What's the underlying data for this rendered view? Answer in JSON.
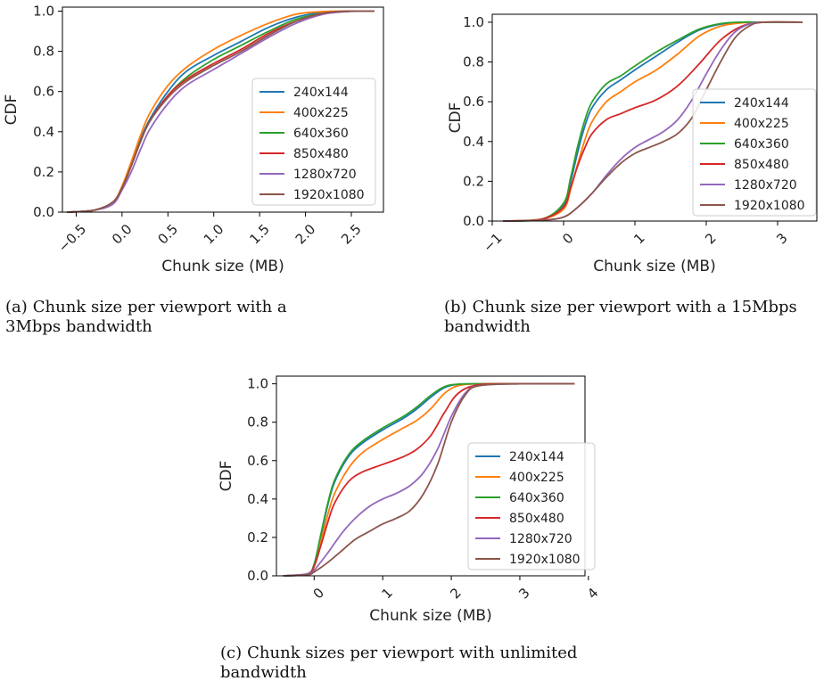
{
  "legend_labels": [
    "240x144",
    "400x225",
    "640x360",
    "850x480",
    "1280x720",
    "1920x1080"
  ],
  "series_colors": [
    "#1f77b4",
    "#ff7f0e",
    "#2ca02c",
    "#d62728",
    "#9467bd",
    "#8c564b"
  ],
  "captions": [
    {
      "tag": "(a)",
      "text": "Chunk size per viewport with a 3Mbps bandwidth"
    },
    {
      "tag": "(b)",
      "text": "Chunk size per viewport with a 15Mbps bandwidth"
    },
    {
      "tag": "(c)",
      "text": "Chunk sizes per viewport with unlimited bandwidth"
    }
  ],
  "chart_data": [
    {
      "type": "line",
      "xlabel": "Chunk size (MB)",
      "ylabel": "CDF",
      "xlim": [
        -0.65,
        2.85
      ],
      "ylim": [
        0,
        1.02
      ],
      "xticks": [
        -0.5,
        0.0,
        0.5,
        1.0,
        1.5,
        2.0,
        2.5
      ],
      "xtick_labels": [
        "−0.5",
        "0.0",
        "0.5",
        "1.0",
        "1.5",
        "2.0",
        "2.5"
      ],
      "yticks": [
        0.0,
        0.2,
        0.4,
        0.6,
        0.8,
        1.0
      ],
      "ytick_labels": [
        "0.0",
        "0.2",
        "0.4",
        "0.6",
        "0.8",
        "1.0"
      ],
      "grid": false,
      "legend_position": "center-right",
      "series": [
        {
          "name": "240x144",
          "x": [
            -0.6,
            -0.3,
            -0.1,
            0.0,
            0.1,
            0.2,
            0.3,
            0.5,
            0.7,
            1.0,
            1.3,
            1.6,
            1.9,
            2.2,
            2.5,
            2.75
          ],
          "y": [
            0,
            0.01,
            0.05,
            0.12,
            0.24,
            0.36,
            0.46,
            0.6,
            0.7,
            0.78,
            0.85,
            0.92,
            0.97,
            0.995,
            1.0,
            1.0
          ]
        },
        {
          "name": "400x225",
          "x": [
            -0.6,
            -0.3,
            -0.1,
            0.0,
            0.1,
            0.2,
            0.3,
            0.5,
            0.7,
            1.0,
            1.3,
            1.6,
            1.9,
            2.2,
            2.5,
            2.75
          ],
          "y": [
            0,
            0.01,
            0.05,
            0.13,
            0.25,
            0.38,
            0.49,
            0.63,
            0.72,
            0.81,
            0.88,
            0.94,
            0.985,
            0.998,
            1.0,
            1.0
          ]
        },
        {
          "name": "640x360",
          "x": [
            -0.6,
            -0.3,
            -0.1,
            0.0,
            0.1,
            0.2,
            0.3,
            0.5,
            0.7,
            1.0,
            1.3,
            1.6,
            1.9,
            2.2,
            2.5,
            2.75
          ],
          "y": [
            0,
            0.01,
            0.05,
            0.12,
            0.23,
            0.35,
            0.45,
            0.58,
            0.67,
            0.76,
            0.83,
            0.9,
            0.96,
            0.99,
            1.0,
            1.0
          ]
        },
        {
          "name": "850x480",
          "x": [
            -0.6,
            -0.3,
            -0.1,
            0.0,
            0.1,
            0.2,
            0.3,
            0.5,
            0.7,
            1.0,
            1.3,
            1.6,
            1.9,
            2.2,
            2.5,
            2.75
          ],
          "y": [
            0,
            0.01,
            0.05,
            0.12,
            0.23,
            0.35,
            0.45,
            0.58,
            0.66,
            0.74,
            0.81,
            0.89,
            0.95,
            0.99,
            1.0,
            1.0
          ]
        },
        {
          "name": "1280x720",
          "x": [
            -0.6,
            -0.3,
            -0.1,
            0.0,
            0.1,
            0.2,
            0.3,
            0.5,
            0.7,
            1.0,
            1.3,
            1.6,
            1.9,
            2.2,
            2.5,
            2.75
          ],
          "y": [
            0,
            0.01,
            0.04,
            0.11,
            0.2,
            0.31,
            0.41,
            0.54,
            0.63,
            0.71,
            0.79,
            0.87,
            0.94,
            0.985,
            0.999,
            1.0
          ]
        },
        {
          "name": "1920x1080",
          "x": [
            -0.6,
            -0.3,
            -0.1,
            0.0,
            0.1,
            0.2,
            0.3,
            0.5,
            0.7,
            1.0,
            1.3,
            1.6,
            1.9,
            2.2,
            2.5,
            2.75
          ],
          "y": [
            0,
            0.01,
            0.05,
            0.12,
            0.23,
            0.35,
            0.45,
            0.57,
            0.65,
            0.73,
            0.8,
            0.88,
            0.95,
            0.99,
            1.0,
            1.0
          ]
        }
      ]
    },
    {
      "type": "line",
      "xlabel": "Chunk size (MB)",
      "ylabel": "CDF",
      "xlim": [
        -1.0,
        3.55
      ],
      "ylim": [
        0,
        1.04
      ],
      "xticks": [
        -1,
        0,
        1,
        2,
        3
      ],
      "xtick_labels": [
        "−1",
        "0",
        "1",
        "2",
        "3"
      ],
      "yticks": [
        0.0,
        0.2,
        0.4,
        0.6,
        0.8,
        1.0
      ],
      "ytick_labels": [
        "0.0",
        "0.2",
        "0.4",
        "0.6",
        "0.8",
        "1.0"
      ],
      "grid": false,
      "legend_position": "center-right",
      "series": [
        {
          "name": "240x144",
          "x": [
            -0.85,
            -0.3,
            0.0,
            0.1,
            0.2,
            0.3,
            0.4,
            0.6,
            0.8,
            1.0,
            1.3,
            1.6,
            1.9,
            2.2,
            2.5,
            2.8,
            3.35
          ],
          "y": [
            0,
            0.01,
            0.08,
            0.2,
            0.35,
            0.48,
            0.57,
            0.66,
            0.71,
            0.76,
            0.83,
            0.9,
            0.96,
            0.99,
            1.0,
            1.0,
            1.0
          ]
        },
        {
          "name": "400x225",
          "x": [
            -0.85,
            -0.3,
            0.0,
            0.1,
            0.2,
            0.3,
            0.4,
            0.6,
            0.8,
            1.0,
            1.3,
            1.6,
            1.9,
            2.2,
            2.5,
            2.8,
            3.35
          ],
          "y": [
            0,
            0.01,
            0.06,
            0.16,
            0.29,
            0.41,
            0.5,
            0.6,
            0.65,
            0.7,
            0.76,
            0.84,
            0.93,
            0.98,
            0.997,
            1.0,
            1.0
          ]
        },
        {
          "name": "640x360",
          "x": [
            -0.85,
            -0.3,
            0.0,
            0.1,
            0.2,
            0.3,
            0.4,
            0.6,
            0.8,
            1.0,
            1.3,
            1.6,
            1.9,
            2.2,
            2.5,
            2.8,
            3.35
          ],
          "y": [
            0,
            0.01,
            0.09,
            0.22,
            0.38,
            0.51,
            0.6,
            0.69,
            0.73,
            0.78,
            0.85,
            0.91,
            0.965,
            0.993,
            1.0,
            1.0,
            1.0
          ]
        },
        {
          "name": "850x480",
          "x": [
            -0.85,
            -0.3,
            0.0,
            0.1,
            0.2,
            0.3,
            0.4,
            0.6,
            0.8,
            1.0,
            1.3,
            1.6,
            1.9,
            2.2,
            2.5,
            2.8,
            3.35
          ],
          "y": [
            0,
            0.01,
            0.07,
            0.17,
            0.28,
            0.37,
            0.44,
            0.51,
            0.54,
            0.57,
            0.61,
            0.68,
            0.79,
            0.91,
            0.98,
            1.0,
            1.0
          ]
        },
        {
          "name": "1280x720",
          "x": [
            -0.85,
            -0.3,
            0.0,
            0.2,
            0.4,
            0.6,
            0.8,
            1.0,
            1.2,
            1.4,
            1.6,
            1.8,
            2.0,
            2.2,
            2.4,
            2.6,
            2.8,
            3.35
          ],
          "y": [
            0,
            0.005,
            0.02,
            0.07,
            0.14,
            0.23,
            0.31,
            0.37,
            0.41,
            0.45,
            0.51,
            0.61,
            0.74,
            0.86,
            0.95,
            0.99,
            1.0,
            1.0
          ]
        },
        {
          "name": "1920x1080",
          "x": [
            -0.85,
            -0.3,
            0.0,
            0.2,
            0.4,
            0.6,
            0.8,
            1.0,
            1.2,
            1.4,
            1.6,
            1.8,
            2.0,
            2.2,
            2.4,
            2.6,
            2.8,
            3.35
          ],
          "y": [
            0,
            0.005,
            0.02,
            0.07,
            0.14,
            0.22,
            0.29,
            0.34,
            0.37,
            0.4,
            0.44,
            0.52,
            0.66,
            0.8,
            0.92,
            0.98,
            1.0,
            1.0
          ]
        }
      ]
    },
    {
      "type": "line",
      "xlabel": "Chunk size (MB)",
      "ylabel": "CDF",
      "xlim": [
        -0.55,
        3.95
      ],
      "ylim": [
        0,
        1.04
      ],
      "xticks": [
        0,
        1,
        2,
        3,
        4
      ],
      "xtick_labels": [
        "0",
        "1",
        "2",
        "3",
        "4"
      ],
      "yticks": [
        0.0,
        0.2,
        0.4,
        0.6,
        0.8,
        1.0
      ],
      "ytick_labels": [
        "0.0",
        "0.2",
        "0.4",
        "0.6",
        "0.8",
        "1.0"
      ],
      "grid": false,
      "legend_position": "center-right",
      "series": [
        {
          "name": "240x144",
          "x": [
            -0.45,
            -0.1,
            0.0,
            0.1,
            0.2,
            0.3,
            0.5,
            0.7,
            1.0,
            1.3,
            1.5,
            1.7,
            1.9,
            2.1,
            2.4,
            3.0,
            3.8
          ],
          "y": [
            0,
            0.01,
            0.06,
            0.21,
            0.37,
            0.49,
            0.62,
            0.69,
            0.76,
            0.82,
            0.87,
            0.93,
            0.98,
            0.997,
            1.0,
            1.0,
            1.0
          ]
        },
        {
          "name": "400x225",
          "x": [
            -0.45,
            -0.1,
            0.0,
            0.1,
            0.2,
            0.3,
            0.5,
            0.7,
            1.0,
            1.3,
            1.5,
            1.7,
            1.9,
            2.1,
            2.4,
            3.0,
            3.8
          ],
          "y": [
            0,
            0.01,
            0.05,
            0.18,
            0.32,
            0.43,
            0.56,
            0.64,
            0.71,
            0.77,
            0.81,
            0.87,
            0.95,
            0.99,
            1.0,
            1.0,
            1.0
          ]
        },
        {
          "name": "640x360",
          "x": [
            -0.45,
            -0.1,
            0.0,
            0.1,
            0.2,
            0.3,
            0.5,
            0.7,
            1.0,
            1.3,
            1.5,
            1.7,
            1.9,
            2.1,
            2.4,
            3.0,
            3.8
          ],
          "y": [
            0,
            0.01,
            0.06,
            0.22,
            0.38,
            0.5,
            0.63,
            0.7,
            0.77,
            0.83,
            0.88,
            0.94,
            0.985,
            0.998,
            1.0,
            1.0,
            1.0
          ]
        },
        {
          "name": "850x480",
          "x": [
            -0.45,
            -0.1,
            0.0,
            0.1,
            0.2,
            0.3,
            0.5,
            0.7,
            1.0,
            1.3,
            1.5,
            1.7,
            1.9,
            2.1,
            2.4,
            3.0,
            3.8
          ],
          "y": [
            0,
            0.01,
            0.05,
            0.16,
            0.28,
            0.38,
            0.49,
            0.54,
            0.58,
            0.62,
            0.66,
            0.73,
            0.85,
            0.95,
            0.995,
            1.0,
            1.0
          ]
        },
        {
          "name": "1280x720",
          "x": [
            -0.45,
            -0.1,
            0.0,
            0.2,
            0.4,
            0.6,
            0.8,
            1.0,
            1.2,
            1.4,
            1.6,
            1.8,
            2.0,
            2.2,
            2.4,
            3.0,
            3.8
          ],
          "y": [
            0,
            0.01,
            0.03,
            0.12,
            0.22,
            0.3,
            0.36,
            0.4,
            0.43,
            0.47,
            0.54,
            0.66,
            0.83,
            0.95,
            0.99,
            1.0,
            1.0
          ]
        },
        {
          "name": "1920x1080",
          "x": [
            -0.45,
            -0.1,
            0.0,
            0.2,
            0.4,
            0.6,
            0.8,
            1.0,
            1.2,
            1.4,
            1.6,
            1.8,
            2.0,
            2.2,
            2.4,
            3.0,
            3.8
          ],
          "y": [
            0,
            0.005,
            0.02,
            0.07,
            0.13,
            0.19,
            0.23,
            0.27,
            0.3,
            0.34,
            0.43,
            0.58,
            0.8,
            0.94,
            0.99,
            1.0,
            1.0
          ]
        }
      ]
    }
  ]
}
